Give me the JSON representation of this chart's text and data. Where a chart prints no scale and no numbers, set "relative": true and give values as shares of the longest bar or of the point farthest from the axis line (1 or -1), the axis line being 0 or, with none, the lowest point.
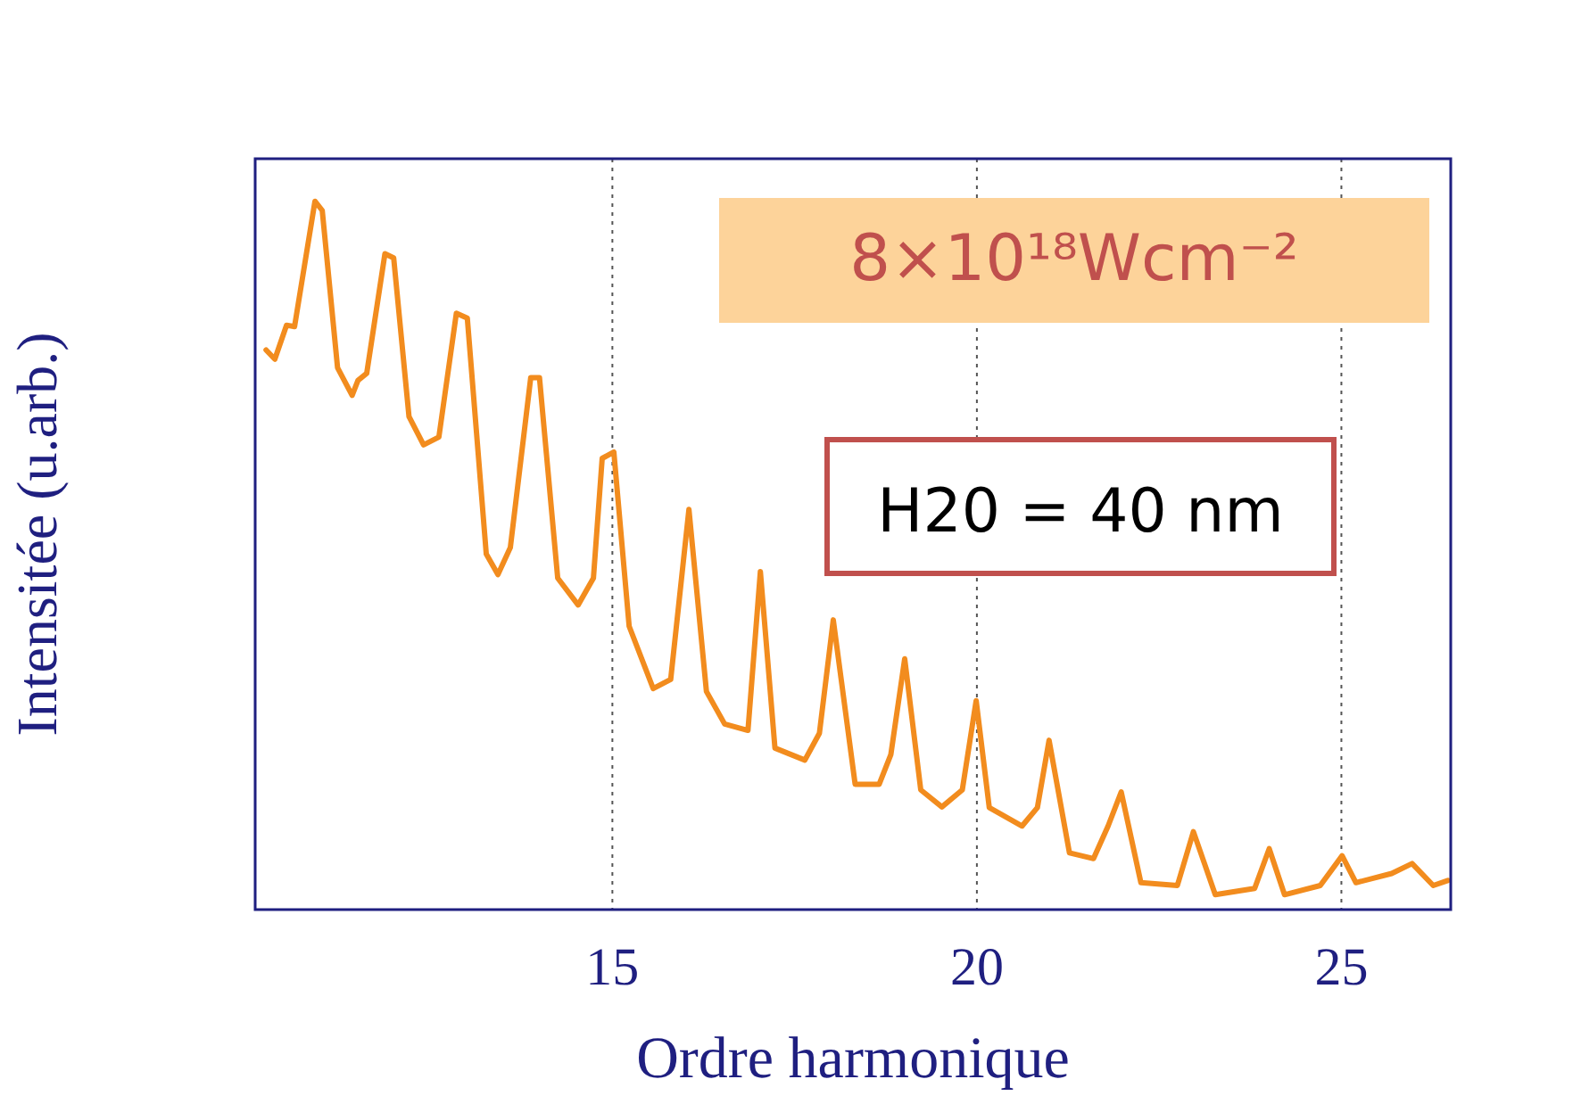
{
  "chart_data": {
    "type": "line",
    "relative": true,
    "xlabel": "Ordre harmonique",
    "ylabel": "Intensitée (u.arb.)",
    "xlim": [
      10.1,
      26.5
    ],
    "xticks": [
      15,
      20,
      25
    ],
    "grid": "x",
    "marker": "none",
    "line_style": "solid",
    "legend": false,
    "annotations": [
      "8×10¹⁸Wcm⁻²",
      "H20 = 40 nm"
    ],
    "series": [
      {
        "color": "#f28c1e",
        "x": [
          10.25,
          10.37,
          10.53,
          10.64,
          10.92,
          11.02,
          11.23,
          11.43,
          11.51,
          11.63,
          11.88,
          12.0,
          12.21,
          12.41,
          12.62,
          12.86,
          13.01,
          13.27,
          13.43,
          13.6,
          13.88,
          14.0,
          14.25,
          14.53,
          14.74,
          14.86,
          15.02,
          15.23,
          15.56,
          15.8,
          16.05,
          16.29,
          16.54,
          16.86,
          17.03,
          17.23,
          17.64,
          17.84,
          18.03,
          18.33,
          18.66,
          18.82,
          19.01,
          19.23,
          19.52,
          19.8,
          19.99,
          20.17,
          20.62,
          20.83,
          20.99,
          21.27,
          21.6,
          21.8,
          21.98,
          22.25,
          22.75,
          22.97,
          23.27,
          23.81,
          24.01,
          24.22,
          24.71,
          25.01,
          25.2,
          25.69,
          25.97,
          26.26,
          26.46
        ],
        "values": [
          0.79,
          0.777,
          0.825,
          0.823,
          1,
          0.987,
          0.765,
          0.726,
          0.747,
          0.757,
          0.926,
          0.92,
          0.696,
          0.656,
          0.667,
          0.842,
          0.835,
          0.502,
          0.473,
          0.511,
          0.751,
          0.751,
          0.468,
          0.43,
          0.468,
          0.637,
          0.646,
          0.4,
          0.312,
          0.325,
          0.565,
          0.308,
          0.262,
          0.253,
          0.477,
          0.228,
          0.211,
          0.249,
          0.409,
          0.177,
          0.177,
          0.219,
          0.354,
          0.169,
          0.145,
          0.169,
          0.295,
          0.144,
          0.118,
          0.144,
          0.239,
          0.08,
          0.072,
          0.118,
          0.166,
          0.038,
          0.034,
          0.11,
          0.021,
          0.03,
          0.086,
          0.021,
          0.034,
          0.076,
          0.038,
          0.051,
          0.065,
          0.034,
          0.041
        ]
      }
    ]
  }
}
